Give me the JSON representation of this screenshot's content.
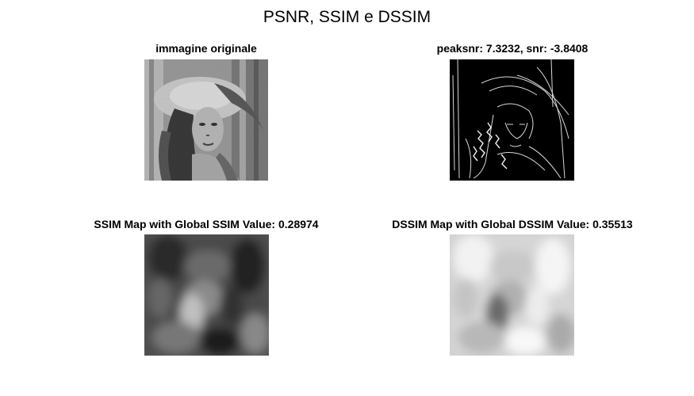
{
  "figure": {
    "title": "PSNR, SSIM e DSSIM"
  },
  "panels": [
    {
      "title": "immagine originale",
      "image": "grayscale portrait photo (Lena)"
    },
    {
      "title": "peaksnr: 7.3232,  snr: -3.8408",
      "image": "black background edge map"
    },
    {
      "title": "SSIM Map with Global SSIM Value: 0.28974",
      "image": "blurry dark grayscale SSIM map"
    },
    {
      "title": "DSSIM Map with Global DSSIM Value: 0.35513",
      "image": "blurry light grayscale DSSIM map"
    }
  ]
}
